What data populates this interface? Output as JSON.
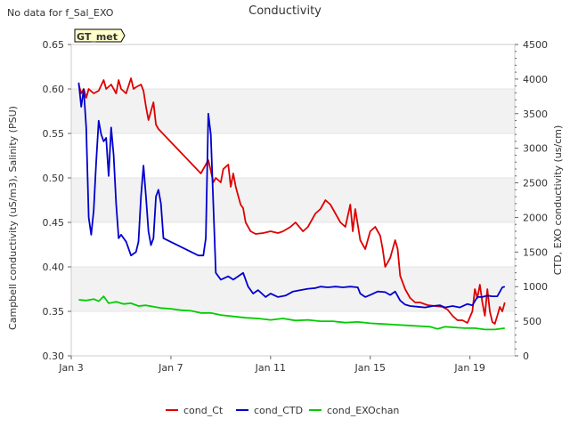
{
  "note": "No data for f_Sal_EXO",
  "badge": "GT_met",
  "chart_data": {
    "type": "line",
    "title": "Conductivity",
    "ylabel_left": "Campbell conductivity (uS/m3), Salinity (PSU)",
    "ylabel_right": "CTD, EXO conductivity (us/cm)",
    "ylim_left": [
      0.3,
      0.65
    ],
    "ylim_right": [
      0,
      4500
    ],
    "xlim": [
      3,
      20.8
    ],
    "x_unit": "day of January",
    "x_ticks": [
      {
        "x": 3,
        "label": "Jan 3"
      },
      {
        "x": 7,
        "label": "Jan 7"
      },
      {
        "x": 11,
        "label": "Jan 11"
      },
      {
        "x": 15,
        "label": "Jan 15"
      },
      {
        "x": 19,
        "label": "Jan 19"
      }
    ],
    "y_ticks_left": [
      "0.30",
      "0.35",
      "0.40",
      "0.45",
      "0.50",
      "0.55",
      "0.60",
      "0.65"
    ],
    "y_ticks_right": [
      "0",
      "500",
      "1000",
      "1500",
      "2000",
      "2500",
      "3000",
      "3500",
      "4000",
      "4500"
    ],
    "bands": [
      [
        0.35,
        0.4
      ],
      [
        0.45,
        0.5
      ],
      [
        0.55,
        0.6
      ]
    ],
    "legend_position": "bottom",
    "series": [
      {
        "name": "cond_Ct",
        "axis": "left",
        "color": "#dd0000",
        "points": [
          [
            3.3,
            0.605
          ],
          [
            3.4,
            0.595
          ],
          [
            3.5,
            0.6
          ],
          [
            3.6,
            0.59
          ],
          [
            3.7,
            0.6
          ],
          [
            3.9,
            0.595
          ],
          [
            4.1,
            0.598
          ],
          [
            4.3,
            0.61
          ],
          [
            4.4,
            0.6
          ],
          [
            4.6,
            0.605
          ],
          [
            4.8,
            0.595
          ],
          [
            4.9,
            0.61
          ],
          [
            5.0,
            0.6
          ],
          [
            5.2,
            0.595
          ],
          [
            5.4,
            0.612
          ],
          [
            5.5,
            0.6
          ],
          [
            5.6,
            0.602
          ],
          [
            5.8,
            0.605
          ],
          [
            5.9,
            0.598
          ],
          [
            6.0,
            0.58
          ],
          [
            6.1,
            0.565
          ],
          [
            6.2,
            0.575
          ],
          [
            6.3,
            0.585
          ],
          [
            6.4,
            0.56
          ],
          [
            6.5,
            0.555
          ],
          [
            8.1,
            0.508
          ],
          [
            8.2,
            0.505
          ],
          [
            8.3,
            0.51
          ],
          [
            8.4,
            0.515
          ],
          [
            8.5,
            0.52
          ],
          [
            8.6,
            0.508
          ],
          [
            8.7,
            0.495
          ],
          [
            8.8,
            0.5
          ],
          [
            9.0,
            0.495
          ],
          [
            9.1,
            0.51
          ],
          [
            9.3,
            0.515
          ],
          [
            9.4,
            0.49
          ],
          [
            9.5,
            0.505
          ],
          [
            9.6,
            0.49
          ],
          [
            9.7,
            0.48
          ],
          [
            9.8,
            0.47
          ],
          [
            9.9,
            0.466
          ],
          [
            10.0,
            0.45
          ],
          [
            10.2,
            0.44
          ],
          [
            10.4,
            0.437
          ],
          [
            10.7,
            0.438
          ],
          [
            11.0,
            0.44
          ],
          [
            11.3,
            0.438
          ],
          [
            11.5,
            0.44
          ],
          [
            11.8,
            0.445
          ],
          [
            12.0,
            0.45
          ],
          [
            12.3,
            0.44
          ],
          [
            12.5,
            0.445
          ],
          [
            12.8,
            0.46
          ],
          [
            13.0,
            0.465
          ],
          [
            13.2,
            0.475
          ],
          [
            13.4,
            0.47
          ],
          [
            13.6,
            0.46
          ],
          [
            13.8,
            0.45
          ],
          [
            14.0,
            0.445
          ],
          [
            14.2,
            0.47
          ],
          [
            14.3,
            0.44
          ],
          [
            14.4,
            0.465
          ],
          [
            14.6,
            0.43
          ],
          [
            14.8,
            0.42
          ],
          [
            15.0,
            0.44
          ],
          [
            15.2,
            0.445
          ],
          [
            15.4,
            0.435
          ],
          [
            15.5,
            0.42
          ],
          [
            15.6,
            0.4
          ],
          [
            15.8,
            0.41
          ],
          [
            16.0,
            0.43
          ],
          [
            16.1,
            0.42
          ],
          [
            16.2,
            0.39
          ],
          [
            16.4,
            0.375
          ],
          [
            16.6,
            0.365
          ],
          [
            16.8,
            0.36
          ],
          [
            17.0,
            0.36
          ],
          [
            17.3,
            0.357
          ],
          [
            17.6,
            0.356
          ],
          [
            17.9,
            0.355
          ],
          [
            18.1,
            0.352
          ],
          [
            18.3,
            0.345
          ],
          [
            18.5,
            0.34
          ],
          [
            18.7,
            0.34
          ],
          [
            18.9,
            0.337
          ],
          [
            19.1,
            0.35
          ],
          [
            19.2,
            0.375
          ],
          [
            19.3,
            0.365
          ],
          [
            19.4,
            0.38
          ],
          [
            19.5,
            0.36
          ],
          [
            19.6,
            0.345
          ],
          [
            19.7,
            0.375
          ],
          [
            19.8,
            0.35
          ],
          [
            19.9,
            0.338
          ],
          [
            20.0,
            0.336
          ],
          [
            20.1,
            0.345
          ],
          [
            20.2,
            0.355
          ],
          [
            20.3,
            0.35
          ],
          [
            20.4,
            0.36
          ]
        ]
      },
      {
        "name": "cond_CTD",
        "axis": "right",
        "color": "#0000cc",
        "points": [
          [
            3.3,
            3950
          ],
          [
            3.4,
            3600
          ],
          [
            3.5,
            3850
          ],
          [
            3.6,
            3300
          ],
          [
            3.7,
            2000
          ],
          [
            3.8,
            1750
          ],
          [
            3.9,
            2100
          ],
          [
            4.0,
            2800
          ],
          [
            4.1,
            3400
          ],
          [
            4.2,
            3200
          ],
          [
            4.3,
            3100
          ],
          [
            4.4,
            3150
          ],
          [
            4.5,
            2600
          ],
          [
            4.6,
            3300
          ],
          [
            4.7,
            2900
          ],
          [
            4.8,
            2200
          ],
          [
            4.9,
            1700
          ],
          [
            5.0,
            1750
          ],
          [
            5.2,
            1650
          ],
          [
            5.4,
            1450
          ],
          [
            5.6,
            1500
          ],
          [
            5.7,
            1650
          ],
          [
            5.8,
            2300
          ],
          [
            5.9,
            2750
          ],
          [
            6.0,
            2300
          ],
          [
            6.1,
            1800
          ],
          [
            6.2,
            1600
          ],
          [
            6.3,
            1700
          ],
          [
            6.4,
            2300
          ],
          [
            6.5,
            2400
          ],
          [
            6.6,
            2200
          ],
          [
            6.7,
            1700
          ],
          [
            8.1,
            1450
          ],
          [
            8.3,
            1450
          ],
          [
            8.4,
            1700
          ],
          [
            8.5,
            3500
          ],
          [
            8.6,
            3200
          ],
          [
            8.7,
            2200
          ],
          [
            8.8,
            1200
          ],
          [
            9.0,
            1100
          ],
          [
            9.3,
            1150
          ],
          [
            9.5,
            1100
          ],
          [
            9.7,
            1150
          ],
          [
            9.9,
            1200
          ],
          [
            10.1,
            1000
          ],
          [
            10.3,
            900
          ],
          [
            10.5,
            950
          ],
          [
            10.8,
            850
          ],
          [
            11.0,
            900
          ],
          [
            11.3,
            850
          ],
          [
            11.6,
            870
          ],
          [
            11.9,
            930
          ],
          [
            12.2,
            950
          ],
          [
            12.5,
            970
          ],
          [
            12.8,
            980
          ],
          [
            13.0,
            1000
          ],
          [
            13.3,
            990
          ],
          [
            13.6,
            1000
          ],
          [
            13.9,
            990
          ],
          [
            14.2,
            1000
          ],
          [
            14.5,
            990
          ],
          [
            14.6,
            900
          ],
          [
            14.8,
            850
          ],
          [
            15.0,
            880
          ],
          [
            15.3,
            930
          ],
          [
            15.6,
            920
          ],
          [
            15.8,
            880
          ],
          [
            16.0,
            930
          ],
          [
            16.2,
            800
          ],
          [
            16.4,
            740
          ],
          [
            16.6,
            720
          ],
          [
            16.9,
            710
          ],
          [
            17.2,
            700
          ],
          [
            17.5,
            720
          ],
          [
            17.8,
            730
          ],
          [
            18.0,
            700
          ],
          [
            18.3,
            720
          ],
          [
            18.6,
            700
          ],
          [
            18.9,
            750
          ],
          [
            19.1,
            730
          ],
          [
            19.3,
            850
          ],
          [
            19.5,
            850
          ],
          [
            19.7,
            870
          ],
          [
            19.9,
            860
          ],
          [
            20.1,
            860
          ],
          [
            20.3,
            990
          ],
          [
            20.4,
            1000
          ]
        ]
      },
      {
        "name": "cond_EXOchan",
        "axis": "right",
        "color": "#00cc00",
        "points": [
          [
            3.3,
            810
          ],
          [
            3.6,
            800
          ],
          [
            3.9,
            820
          ],
          [
            4.1,
            790
          ],
          [
            4.3,
            860
          ],
          [
            4.5,
            760
          ],
          [
            4.8,
            780
          ],
          [
            5.1,
            750
          ],
          [
            5.4,
            760
          ],
          [
            5.7,
            720
          ],
          [
            6.0,
            730
          ],
          [
            6.3,
            710
          ],
          [
            6.6,
            690
          ],
          [
            7.0,
            680
          ],
          [
            7.4,
            660
          ],
          [
            7.8,
            650
          ],
          [
            8.2,
            620
          ],
          [
            8.6,
            620
          ],
          [
            9.0,
            590
          ],
          [
            9.5,
            570
          ],
          [
            10.0,
            550
          ],
          [
            10.5,
            540
          ],
          [
            11.0,
            520
          ],
          [
            11.5,
            540
          ],
          [
            12.0,
            510
          ],
          [
            12.5,
            520
          ],
          [
            13.0,
            500
          ],
          [
            13.5,
            500
          ],
          [
            14.0,
            480
          ],
          [
            14.5,
            490
          ],
          [
            15.0,
            470
          ],
          [
            15.5,
            460
          ],
          [
            16.0,
            450
          ],
          [
            16.5,
            440
          ],
          [
            17.0,
            430
          ],
          [
            17.4,
            420
          ],
          [
            17.7,
            390
          ],
          [
            18.0,
            420
          ],
          [
            18.4,
            410
          ],
          [
            18.8,
            400
          ],
          [
            19.2,
            400
          ],
          [
            19.6,
            380
          ],
          [
            20.0,
            380
          ],
          [
            20.4,
            400
          ]
        ]
      }
    ]
  }
}
